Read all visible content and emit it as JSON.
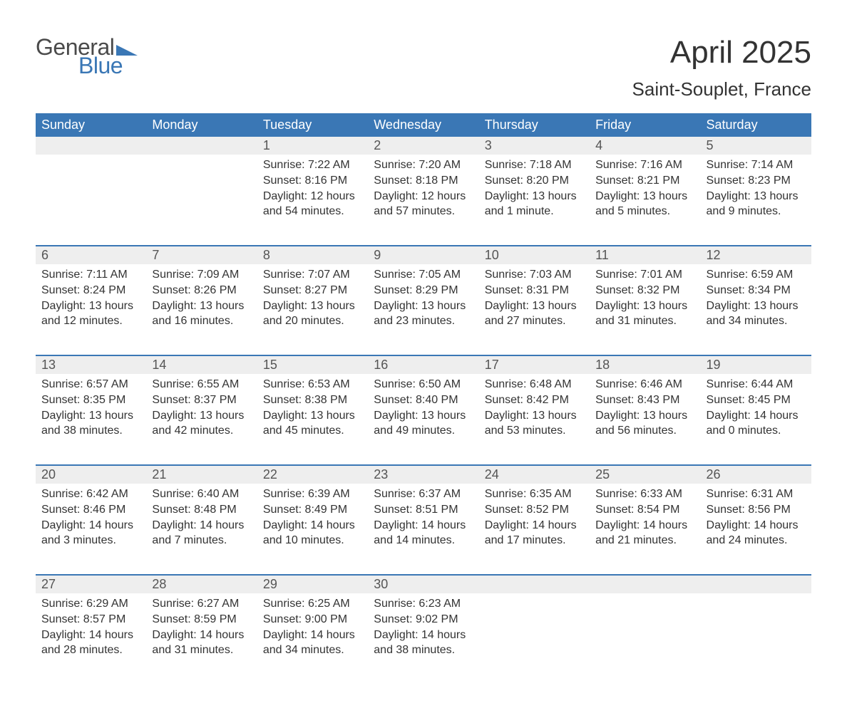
{
  "brand": {
    "line1": "General",
    "line2": "Blue",
    "accent_color": "#3a77b5",
    "text_color": "#4a4a4a"
  },
  "title": "April 2025",
  "location": "Saint-Souplet, France",
  "colors": {
    "header_bg": "#3a77b5",
    "header_text": "#ffffff",
    "daynum_bg": "#eeeeee",
    "daynum_text": "#555555",
    "body_text": "#333333",
    "rule": "#3a77b5",
    "page_bg": "#ffffff"
  },
  "weekdays": [
    "Sunday",
    "Monday",
    "Tuesday",
    "Wednesday",
    "Thursday",
    "Friday",
    "Saturday"
  ],
  "weeks": [
    [
      null,
      null,
      {
        "n": "1",
        "sunrise": "7:22 AM",
        "sunset": "8:16 PM",
        "daylight": "12 hours and 54 minutes."
      },
      {
        "n": "2",
        "sunrise": "7:20 AM",
        "sunset": "8:18 PM",
        "daylight": "12 hours and 57 minutes."
      },
      {
        "n": "3",
        "sunrise": "7:18 AM",
        "sunset": "8:20 PM",
        "daylight": "13 hours and 1 minute."
      },
      {
        "n": "4",
        "sunrise": "7:16 AM",
        "sunset": "8:21 PM",
        "daylight": "13 hours and 5 minutes."
      },
      {
        "n": "5",
        "sunrise": "7:14 AM",
        "sunset": "8:23 PM",
        "daylight": "13 hours and 9 minutes."
      }
    ],
    [
      {
        "n": "6",
        "sunrise": "7:11 AM",
        "sunset": "8:24 PM",
        "daylight": "13 hours and 12 minutes."
      },
      {
        "n": "7",
        "sunrise": "7:09 AM",
        "sunset": "8:26 PM",
        "daylight": "13 hours and 16 minutes."
      },
      {
        "n": "8",
        "sunrise": "7:07 AM",
        "sunset": "8:27 PM",
        "daylight": "13 hours and 20 minutes."
      },
      {
        "n": "9",
        "sunrise": "7:05 AM",
        "sunset": "8:29 PM",
        "daylight": "13 hours and 23 minutes."
      },
      {
        "n": "10",
        "sunrise": "7:03 AM",
        "sunset": "8:31 PM",
        "daylight": "13 hours and 27 minutes."
      },
      {
        "n": "11",
        "sunrise": "7:01 AM",
        "sunset": "8:32 PM",
        "daylight": "13 hours and 31 minutes."
      },
      {
        "n": "12",
        "sunrise": "6:59 AM",
        "sunset": "8:34 PM",
        "daylight": "13 hours and 34 minutes."
      }
    ],
    [
      {
        "n": "13",
        "sunrise": "6:57 AM",
        "sunset": "8:35 PM",
        "daylight": "13 hours and 38 minutes."
      },
      {
        "n": "14",
        "sunrise": "6:55 AM",
        "sunset": "8:37 PM",
        "daylight": "13 hours and 42 minutes."
      },
      {
        "n": "15",
        "sunrise": "6:53 AM",
        "sunset": "8:38 PM",
        "daylight": "13 hours and 45 minutes."
      },
      {
        "n": "16",
        "sunrise": "6:50 AM",
        "sunset": "8:40 PM",
        "daylight": "13 hours and 49 minutes."
      },
      {
        "n": "17",
        "sunrise": "6:48 AM",
        "sunset": "8:42 PM",
        "daylight": "13 hours and 53 minutes."
      },
      {
        "n": "18",
        "sunrise": "6:46 AM",
        "sunset": "8:43 PM",
        "daylight": "13 hours and 56 minutes."
      },
      {
        "n": "19",
        "sunrise": "6:44 AM",
        "sunset": "8:45 PM",
        "daylight": "14 hours and 0 minutes."
      }
    ],
    [
      {
        "n": "20",
        "sunrise": "6:42 AM",
        "sunset": "8:46 PM",
        "daylight": "14 hours and 3 minutes."
      },
      {
        "n": "21",
        "sunrise": "6:40 AM",
        "sunset": "8:48 PM",
        "daylight": "14 hours and 7 minutes."
      },
      {
        "n": "22",
        "sunrise": "6:39 AM",
        "sunset": "8:49 PM",
        "daylight": "14 hours and 10 minutes."
      },
      {
        "n": "23",
        "sunrise": "6:37 AM",
        "sunset": "8:51 PM",
        "daylight": "14 hours and 14 minutes."
      },
      {
        "n": "24",
        "sunrise": "6:35 AM",
        "sunset": "8:52 PM",
        "daylight": "14 hours and 17 minutes."
      },
      {
        "n": "25",
        "sunrise": "6:33 AM",
        "sunset": "8:54 PM",
        "daylight": "14 hours and 21 minutes."
      },
      {
        "n": "26",
        "sunrise": "6:31 AM",
        "sunset": "8:56 PM",
        "daylight": "14 hours and 24 minutes."
      }
    ],
    [
      {
        "n": "27",
        "sunrise": "6:29 AM",
        "sunset": "8:57 PM",
        "daylight": "14 hours and 28 minutes."
      },
      {
        "n": "28",
        "sunrise": "6:27 AM",
        "sunset": "8:59 PM",
        "daylight": "14 hours and 31 minutes."
      },
      {
        "n": "29",
        "sunrise": "6:25 AM",
        "sunset": "9:00 PM",
        "daylight": "14 hours and 34 minutes."
      },
      {
        "n": "30",
        "sunrise": "6:23 AM",
        "sunset": "9:02 PM",
        "daylight": "14 hours and 38 minutes."
      },
      null,
      null,
      null
    ]
  ],
  "labels": {
    "sunrise": "Sunrise: ",
    "sunset": "Sunset: ",
    "daylight": "Daylight: "
  }
}
